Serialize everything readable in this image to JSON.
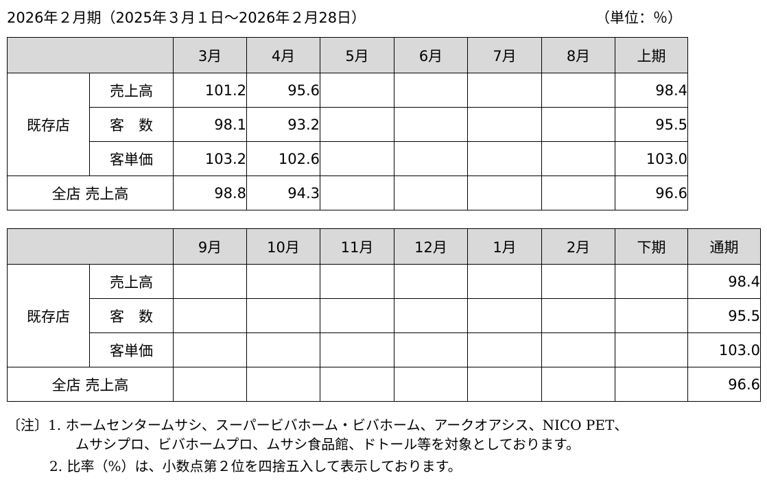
{
  "header": {
    "title": "2026年２月期（2025年３月１日～2026年２月28日）",
    "unit": "（単位：％）"
  },
  "row_labels": {
    "group": "既存店",
    "sales": "売上高",
    "customers": "客　数",
    "unit_price": "客単価",
    "all_stores": "全店 売上高"
  },
  "table1": {
    "columns": [
      "3月",
      "4月",
      "5月",
      "6月",
      "7月",
      "8月",
      "上期"
    ],
    "sales": [
      "101.2",
      "95.6",
      "",
      "",
      "",
      "",
      "98.4"
    ],
    "customers": [
      "98.1",
      "93.2",
      "",
      "",
      "",
      "",
      "95.5"
    ],
    "unit_price": [
      "103.2",
      "102.6",
      "",
      "",
      "",
      "",
      "103.0"
    ],
    "all_stores": [
      "98.8",
      "94.3",
      "",
      "",
      "",
      "",
      "96.6"
    ]
  },
  "table2": {
    "columns": [
      "9月",
      "10月",
      "11月",
      "12月",
      "1月",
      "2月",
      "下期",
      "通期"
    ],
    "sales": [
      "",
      "",
      "",
      "",
      "",
      "",
      "",
      "98.4"
    ],
    "customers": [
      "",
      "",
      "",
      "",
      "",
      "",
      "",
      "95.5"
    ],
    "unit_price": [
      "",
      "",
      "",
      "",
      "",
      "",
      "",
      "103.0"
    ],
    "all_stores": [
      "",
      "",
      "",
      "",
      "",
      "",
      "",
      "96.6"
    ]
  },
  "notes": {
    "item1_line1": "〔注〕1.  ホームセンタームサシ、スーパービバホーム・ビバホーム、アークオアシス、NICO PET、",
    "item1_line2": "ムサシプロ、ビバホームプロ、ムサシ食品館、ドトール等を対象としております。",
    "item2": "2.  比率（%）は、小数点第２位を四捨五入して表示しております。"
  }
}
